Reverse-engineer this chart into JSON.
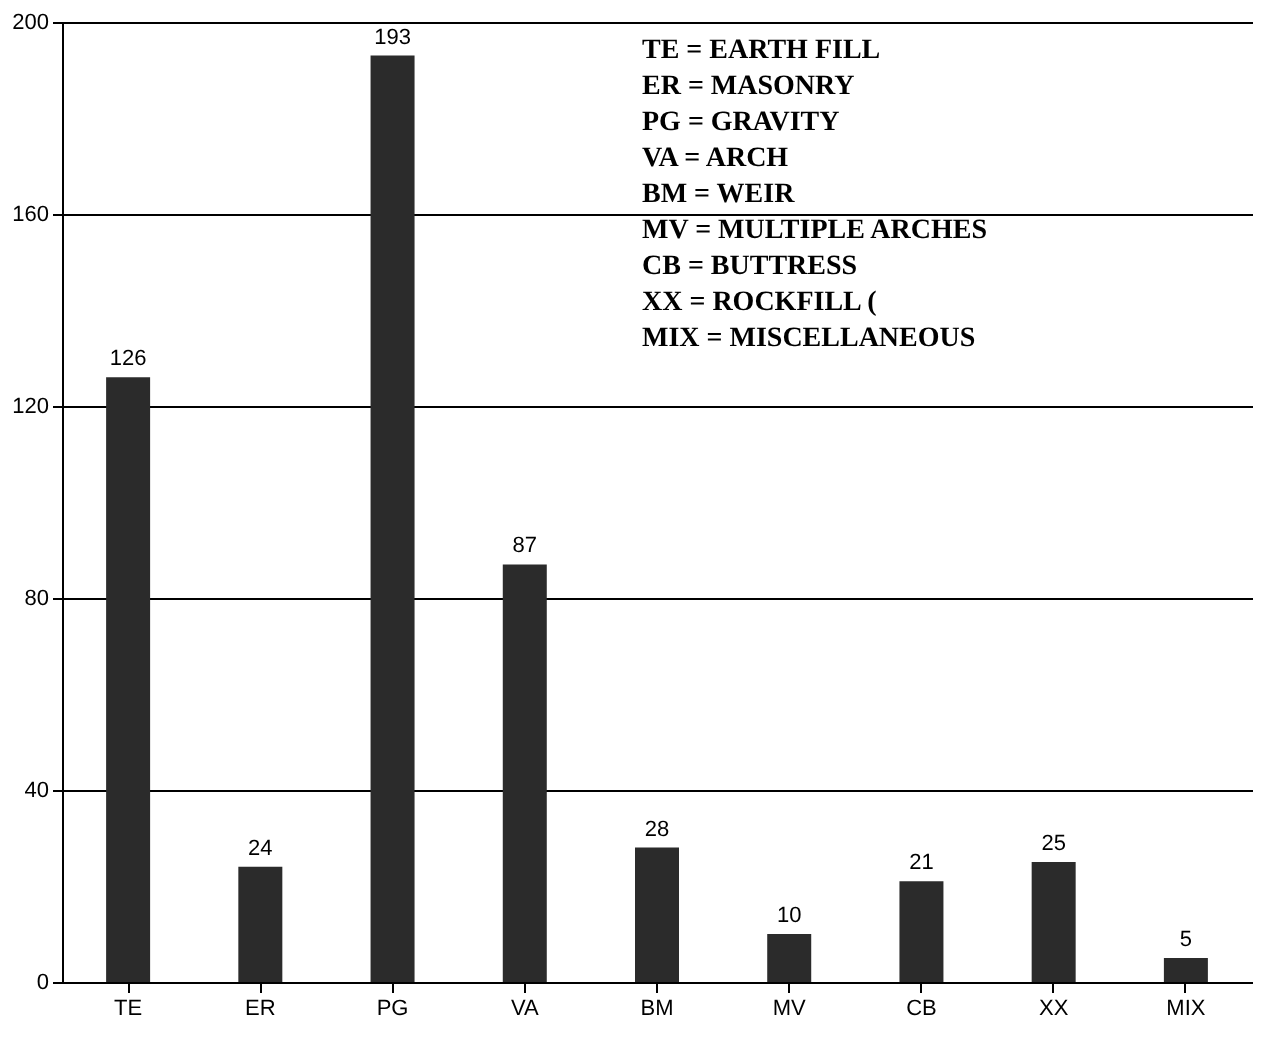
{
  "chart_data": {
    "type": "bar",
    "categories": [
      "TE",
      "ER",
      "PG",
      "VA",
      "BM",
      "MV",
      "CB",
      "XX",
      "MIX"
    ],
    "values": [
      126,
      24,
      193,
      87,
      28,
      10,
      21,
      25,
      5
    ],
    "color": "#2b2b2b",
    "ylim": [
      0,
      200
    ],
    "yticks": [
      0,
      40,
      80,
      120,
      160,
      200
    ],
    "grid": "y",
    "data_labels": true,
    "annotations": [
      "TE  = EARTH FILL",
      "ER  = MASONRY",
      "PG  = GRAVITY",
      "VA  = ARCH",
      "BM  = WEIR",
      "MV  = MULTIPLE ARCHES",
      "CB  = BUTTRESS",
      "XX  = ROCKFILL (",
      "MIX = MISCELLANEOUS"
    ]
  }
}
